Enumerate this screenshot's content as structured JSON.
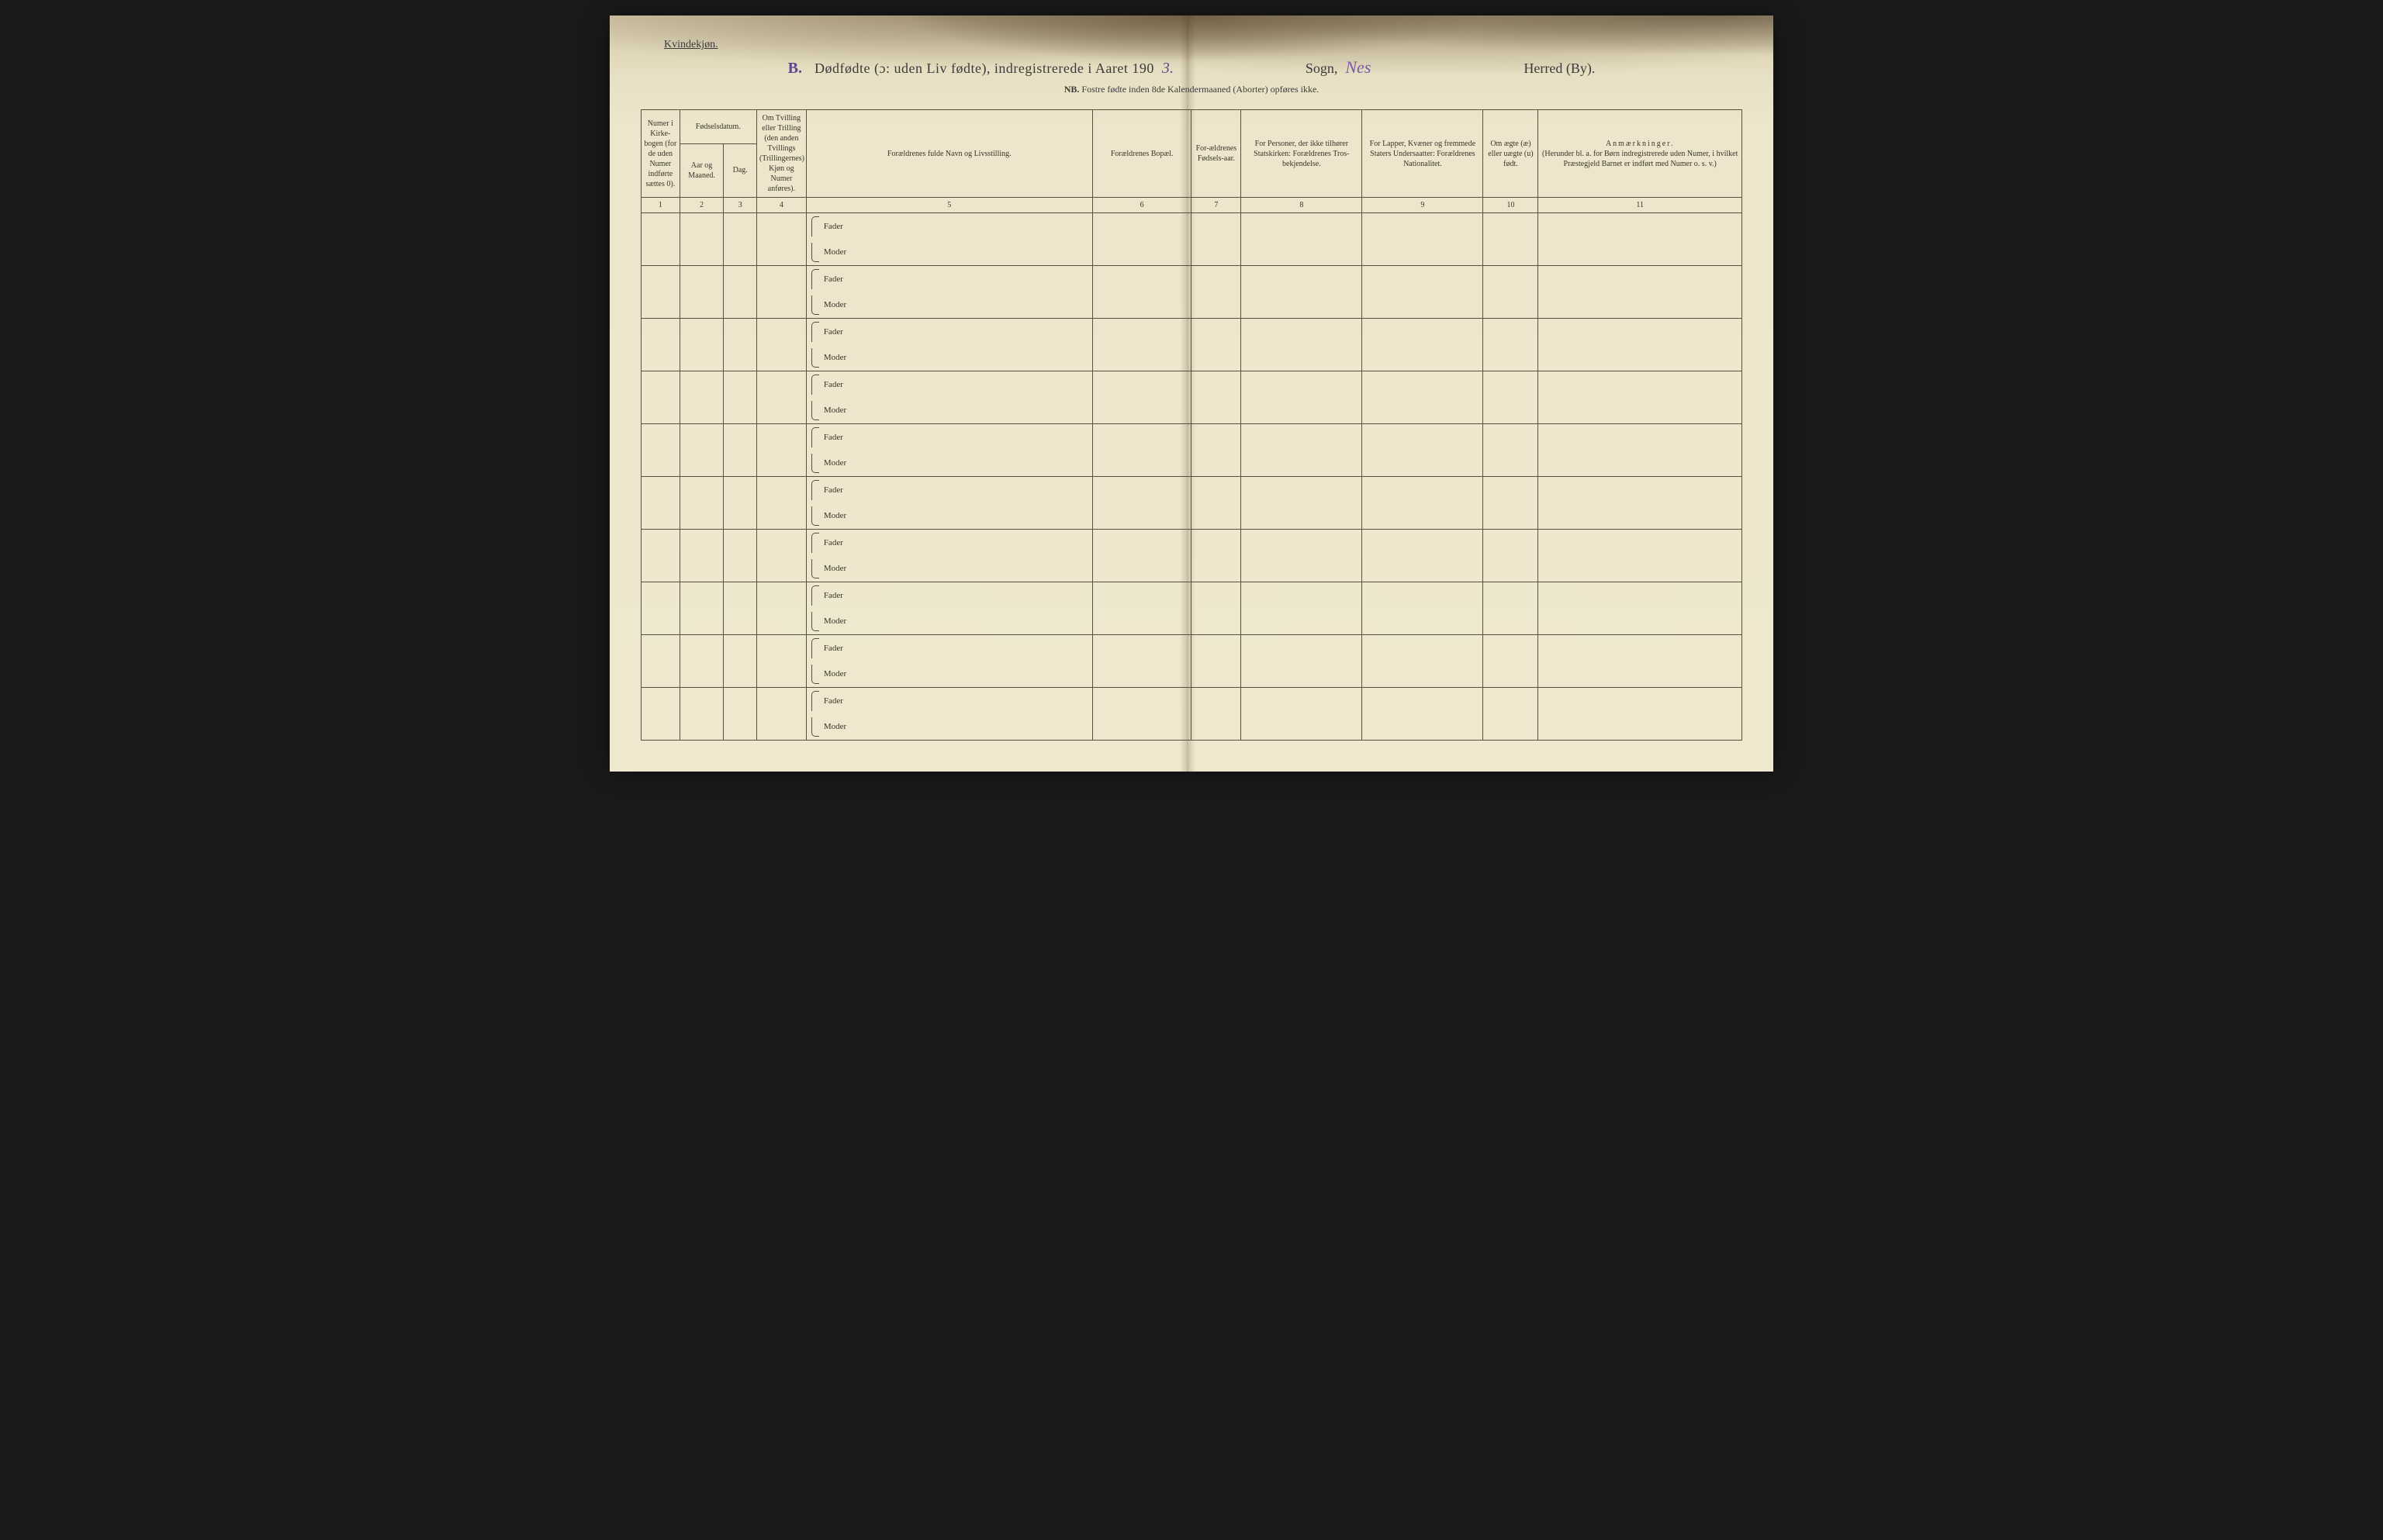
{
  "page": {
    "background_color": "#efe8ce",
    "border_color": "#5a5040",
    "text_color": "#3a342a",
    "handwriting_color": "#5a4a8a"
  },
  "header": {
    "gender_label": "Kvindekjøn.",
    "section_letter": "B.",
    "main_title": "Dødfødte (ɔ: uden Liv fødte), indregistrerede i Aaret 190",
    "year_suffix": "3.",
    "sogn_label": "Sogn,",
    "sogn_value": "Nes",
    "herred_label": "Herred (By).",
    "subtitle_nb": "NB.",
    "subtitle_text": "Fostre fødte inden 8de Kalendermaaned (Aborter) opføres ikke."
  },
  "columns": {
    "col1": "Numer i Kirke-bogen (for de uden Numer indførte sættes 0).",
    "col2_group": "Fødselsdatum.",
    "col2a": "Aar og Maaned.",
    "col2b": "Dag.",
    "col4": "Om Tvilling eller Trilling (den anden Tvillings (Trillingernes) Kjøn og Numer anføres).",
    "col5": "Forældrenes fulde Navn og Livsstilling.",
    "col6": "Forældrenes Bopæl.",
    "col7": "For-ældrenes Fødsels-aar.",
    "col8": "For Personer, der ikke tilhører Statskirken: Forældrenes Tros-bekjendelse.",
    "col9": "For Lapper, Kvæner og fremmede Staters Undersaatter: Forældrenes Nationalitet.",
    "col10": "Om ægte (æ) eller uægte (u) født.",
    "col11_title": "Anmærkninger.",
    "col11_sub": "(Herunder bl. a. for Børn indregistrerede uden Numer, i hvilket Præstegjeld Barnet er indført med Numer o. s. v.)"
  },
  "colnums": [
    "1",
    "2",
    "3",
    "4",
    "5",
    "6",
    "7",
    "8",
    "9",
    "10",
    "11"
  ],
  "row_labels": {
    "fader": "Fader",
    "moder": "Moder"
  },
  "row_count": 10
}
